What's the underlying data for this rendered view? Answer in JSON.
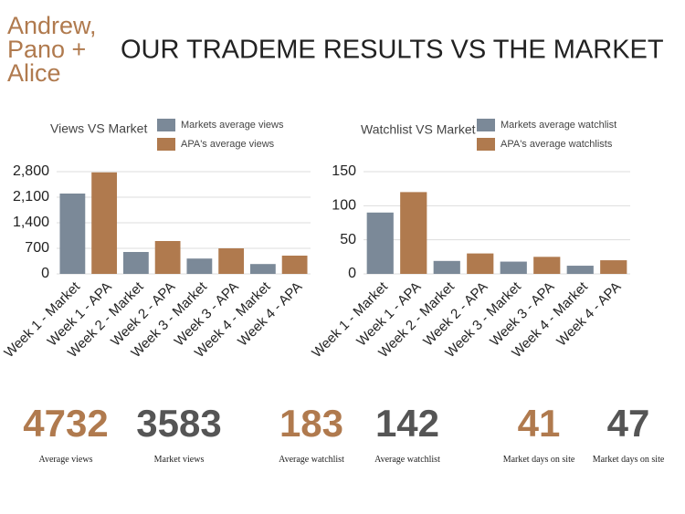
{
  "header": {
    "logo": [
      "Andrew,",
      "Pano +",
      "Alice"
    ],
    "title": "OUR TRADEME RESULTS VS THE MARKET"
  },
  "chart_data": [
    {
      "type": "bar",
      "title": "Views VS Market",
      "categories": [
        "Week 1 - Market",
        "Week 1 - APA",
        "Week 2 - Market",
        "Week 2 - APA",
        "Week 3 - Market",
        "Week 3 - APA",
        "Week 4 - Market",
        "Week 4 - APA"
      ],
      "series": [
        {
          "name": "Markets average views",
          "color": "#7b8998",
          "values": [
            2200,
            null,
            600,
            null,
            420,
            null,
            270,
            null
          ]
        },
        {
          "name": "APA's average views",
          "color": "#b07a4e",
          "values": [
            null,
            2780,
            null,
            900,
            null,
            700,
            null,
            500
          ]
        }
      ],
      "ylim": [
        0,
        2800
      ],
      "yticks": [
        0,
        700,
        {
          "value": 1400,
          "label": "1,400"
        },
        {
          "value": 2100,
          "label": "2,100"
        },
        {
          "value": 2800,
          "label": "2,800"
        }
      ],
      "grid": true
    },
    {
      "type": "bar",
      "title": "Watchlist VS Market",
      "categories": [
        "Week 1 - Market",
        "Week 1 - APA",
        "Week 2 - Market",
        "Week 2 - APA",
        "Week 3 - Market",
        "Week 3 - APA",
        "Week 4 - Market",
        "Week 4 - APA"
      ],
      "series": [
        {
          "name": "Markets average watchlist",
          "color": "#7b8998",
          "values": [
            90,
            null,
            19,
            null,
            18,
            null,
            12,
            null
          ]
        },
        {
          "name": "APA's average watchlists",
          "color": "#b07a4e",
          "values": [
            null,
            120,
            null,
            30,
            null,
            25,
            null,
            20
          ]
        }
      ],
      "ylim": [
        0,
        150
      ],
      "yticks": [
        0,
        50,
        100,
        150
      ],
      "grid": true
    }
  ],
  "stats": [
    {
      "value": 4732,
      "label": "Average views"
    },
    {
      "value": 3583,
      "label": "Market views"
    },
    {
      "value": 183,
      "label": "Average watchlist"
    },
    {
      "value": 142,
      "label": "Average watchlist"
    },
    {
      "value": 41,
      "label": "Market days on site"
    },
    {
      "value": 47,
      "label": "Market days on site"
    }
  ]
}
